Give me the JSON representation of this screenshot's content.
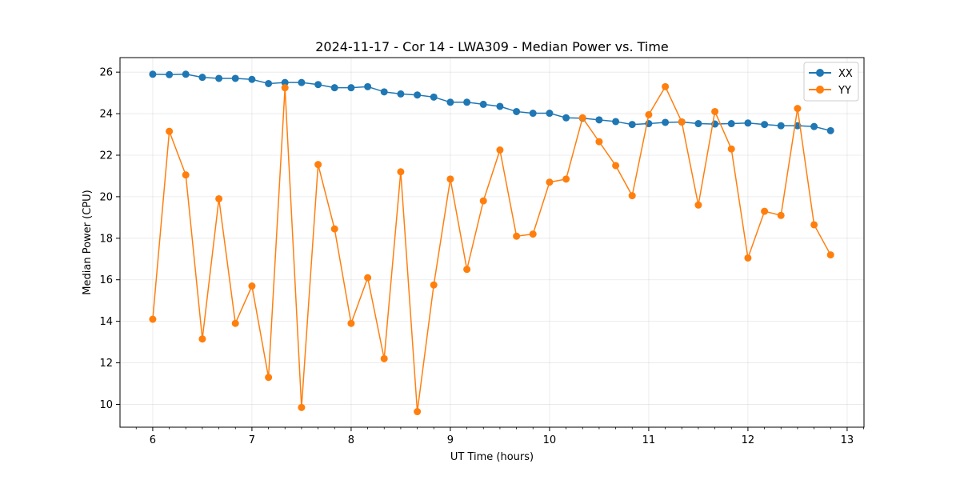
{
  "chart_data": {
    "type": "line",
    "title": "2024-11-17 - Cor 14 - LWA309 - Median Power vs. Time",
    "xlabel": "UT Time (hours)",
    "ylabel": "Median Power (CPU)",
    "xlim": [
      5.67,
      13.17
    ],
    "ylim": [
      8.9,
      26.7
    ],
    "xticks": [
      6,
      7,
      8,
      9,
      10,
      11,
      12,
      13
    ],
    "yticks": [
      10,
      12,
      14,
      16,
      18,
      20,
      22,
      24,
      26
    ],
    "grid": true,
    "legend_position": "top-right",
    "x": [
      6.0,
      6.167,
      6.333,
      6.5,
      6.667,
      6.833,
      7.0,
      7.167,
      7.333,
      7.5,
      7.667,
      7.833,
      8.0,
      8.167,
      8.333,
      8.5,
      8.667,
      8.833,
      9.0,
      9.167,
      9.333,
      9.5,
      9.667,
      9.833,
      10.0,
      10.167,
      10.333,
      10.5,
      10.667,
      10.833,
      11.0,
      11.167,
      11.333,
      11.5,
      11.667,
      11.833,
      12.0,
      12.167,
      12.333,
      12.5,
      12.667,
      12.833
    ],
    "series": [
      {
        "name": "XX",
        "color": "#1f77b4",
        "values": [
          25.9,
          25.88,
          25.9,
          25.75,
          25.7,
          25.7,
          25.65,
          25.45,
          25.5,
          25.5,
          25.4,
          25.25,
          25.25,
          25.3,
          25.05,
          24.95,
          24.9,
          24.8,
          24.55,
          24.55,
          24.45,
          24.35,
          24.1,
          24.02,
          24.02,
          23.8,
          23.78,
          23.7,
          23.62,
          23.48,
          23.52,
          23.58,
          23.6,
          23.52,
          23.5,
          23.52,
          23.55,
          23.48,
          23.42,
          23.42,
          23.38,
          23.18
        ]
      },
      {
        "name": "YY",
        "color": "#ff7f0e",
        "values": [
          14.1,
          23.15,
          21.05,
          13.15,
          19.9,
          13.9,
          15.7,
          11.3,
          25.25,
          9.85,
          21.55,
          18.45,
          13.9,
          16.1,
          12.2,
          21.2,
          9.65,
          15.75,
          20.85,
          16.5,
          19.8,
          22.25,
          18.1,
          18.2,
          20.7,
          20.85,
          23.8,
          22.65,
          21.5,
          20.05,
          23.95,
          25.3,
          23.6,
          19.6,
          24.1,
          22.3,
          17.05,
          19.3,
          19.1,
          24.25,
          18.65,
          17.2
        ]
      }
    ]
  }
}
